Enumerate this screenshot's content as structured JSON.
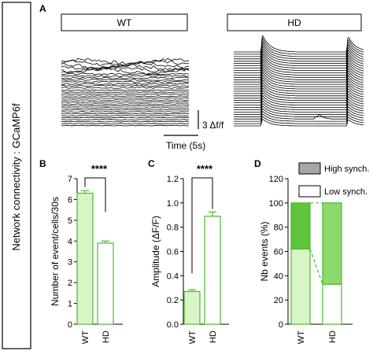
{
  "side_label": "Network connectivity : GCaMP6f",
  "panels": {
    "a": {
      "letter": "A",
      "wt_title": "WT",
      "hd_title": "HD",
      "scale_label": "3 Δf/f",
      "time_label": "Time (5s)"
    },
    "b": {
      "letter": "B",
      "significance": "****"
    },
    "c": {
      "letter": "C",
      "significance": "****"
    },
    "d": {
      "letter": "D",
      "legend_high": "High synch.",
      "legend_low": "Low synch."
    }
  },
  "colors": {
    "light_green": "#d8f5c5",
    "mid_green": "#8ed96b",
    "dark_green": "#5fc43a",
    "stroke_green": "#4cb832",
    "legend_gray": "#a6a6a6"
  },
  "chart_data": [
    {
      "type": "line",
      "panel": "A",
      "title": "WT",
      "series_count": 33,
      "description_free": true
    },
    {
      "type": "line",
      "panel": "A",
      "title": "HD",
      "series_count": 33,
      "events_at_fraction_of_trace": [
        0.22,
        0.88
      ]
    },
    {
      "type": "bar",
      "panel": "B",
      "categories": [
        "WT",
        "HD"
      ],
      "values": [
        6.3,
        3.9
      ],
      "errors": [
        0.12,
        0.1
      ],
      "ylabel": "Number of event/cells/30s",
      "ylim": [
        0,
        7
      ],
      "yticks": [
        0,
        1,
        2,
        3,
        4,
        5,
        6,
        7
      ],
      "significance": "****"
    },
    {
      "type": "bar",
      "panel": "C",
      "categories": [
        "WT",
        "HD"
      ],
      "values": [
        0.27,
        0.89
      ],
      "errors": [
        0.015,
        0.035
      ],
      "ylabel": "Amplitude (ΔF/F)",
      "ylim": [
        0,
        1.2
      ],
      "yticks": [
        0,
        0.2,
        0.4,
        0.6,
        0.8,
        1.0,
        1.2
      ],
      "significance": "****"
    },
    {
      "type": "bar",
      "stacked": true,
      "panel": "D",
      "categories": [
        "WT",
        "HD"
      ],
      "series": [
        {
          "name": "Low synch.",
          "values": [
            62,
            33
          ]
        },
        {
          "name": "High synch.",
          "values": [
            38,
            67
          ]
        }
      ],
      "ylabel": "Nb events (%)",
      "ylim": [
        0,
        120
      ],
      "yticks": [
        0,
        20,
        40,
        60,
        80,
        100,
        120
      ]
    }
  ]
}
